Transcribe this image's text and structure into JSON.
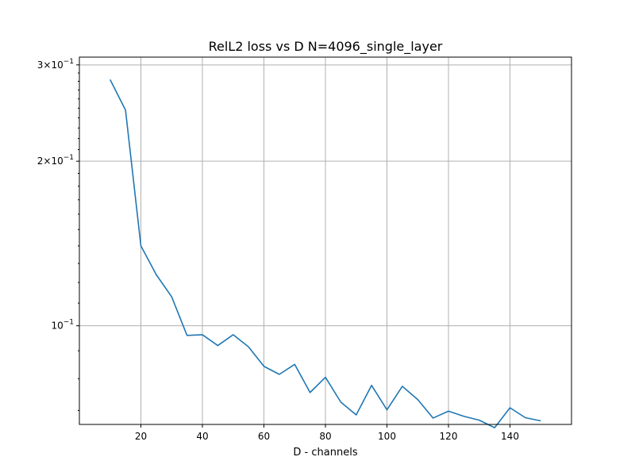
{
  "chart_data": {
    "type": "line",
    "title": "RelL2 loss vs D N=4096_single_layer",
    "xlabel": "D - channels",
    "ylabel": "",
    "xlim": [
      0,
      160
    ],
    "ylim": [
      0.066,
      0.31
    ],
    "yscale": "log",
    "grid": true,
    "xticks": [
      20,
      40,
      60,
      80,
      100,
      120,
      140
    ],
    "yticks": [
      {
        "value": 0.3,
        "base": "3",
        "exp": "−1"
      },
      {
        "value": 0.2,
        "base": "2",
        "exp": "−1"
      },
      {
        "value": 0.1,
        "base": "10",
        "exp": "−1"
      }
    ],
    "series": [
      {
        "color": "#1f77b4",
        "x": [
          10,
          15,
          20,
          25,
          30,
          35,
          40,
          45,
          50,
          55,
          60,
          65,
          70,
          75,
          80,
          85,
          90,
          95,
          100,
          105,
          110,
          115,
          120,
          125,
          130,
          135,
          140,
          145,
          150
        ],
        "y": [
          0.282,
          0.248,
          0.14,
          0.124,
          0.113,
          0.096,
          0.0963,
          0.092,
          0.0963,
          0.0915,
          0.0843,
          0.0815,
          0.085,
          0.0755,
          0.0805,
          0.0725,
          0.0687,
          0.0778,
          0.0702,
          0.0775,
          0.0733,
          0.0678,
          0.0698,
          0.0683,
          0.0672,
          0.0651,
          0.0708,
          0.0679,
          0.067
        ]
      }
    ]
  }
}
